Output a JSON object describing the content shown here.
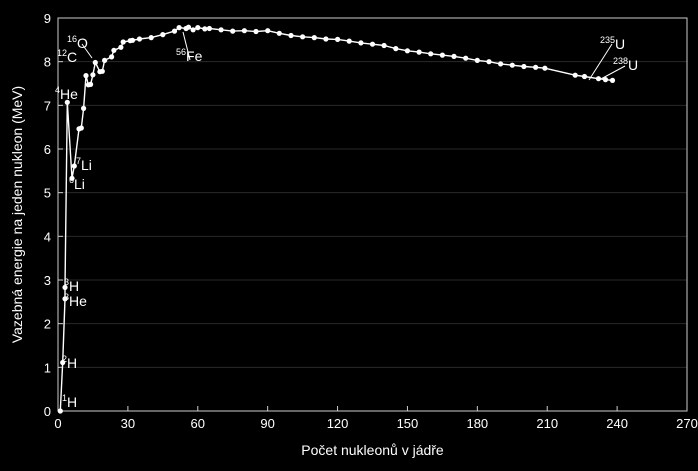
{
  "chart_data": {
    "type": "scatter",
    "xlabel": "Počet nukleonů v jádře",
    "ylabel": "Vazebná energie na jeden nukleon (MeV)",
    "xlim": [
      0,
      270
    ],
    "ylim": [
      0,
      9
    ],
    "x_ticks": [
      0,
      30,
      60,
      90,
      120,
      150,
      180,
      210,
      240,
      270
    ],
    "y_ticks": [
      0,
      1,
      2,
      3,
      4,
      5,
      6,
      7,
      8,
      9
    ],
    "grid": true,
    "colors": {
      "background": "#000000",
      "line": "#ffffff",
      "grid": "#2a2a2a"
    },
    "series": [
      {
        "x": [
          1,
          2,
          3,
          3,
          4,
          6,
          7,
          9,
          10,
          11,
          12,
          13,
          14,
          15,
          16,
          18,
          19,
          20,
          23,
          24,
          27,
          28,
          31,
          32,
          35,
          40,
          45,
          50,
          52,
          55,
          56,
          58,
          60,
          63,
          65,
          70,
          75,
          80,
          85,
          90,
          95,
          100,
          105,
          110,
          115,
          120,
          125,
          130,
          135,
          140,
          145,
          150,
          155,
          160,
          165,
          170,
          175,
          180,
          185,
          190,
          195,
          200,
          205,
          209,
          222,
          226,
          232,
          235,
          238
        ],
        "y": [
          0,
          1.11,
          2.57,
          2.83,
          7.07,
          5.33,
          5.61,
          6.46,
          6.48,
          6.93,
          7.68,
          7.47,
          7.48,
          7.7,
          7.98,
          7.77,
          7.78,
          8.03,
          8.11,
          8.26,
          8.33,
          8.45,
          8.48,
          8.49,
          8.52,
          8.55,
          8.62,
          8.7,
          8.78,
          8.76,
          8.79,
          8.73,
          8.78,
          8.75,
          8.76,
          8.73,
          8.7,
          8.71,
          8.69,
          8.71,
          8.65,
          8.6,
          8.57,
          8.55,
          8.52,
          8.51,
          8.47,
          8.43,
          8.4,
          8.37,
          8.3,
          8.25,
          8.22,
          8.18,
          8.15,
          8.12,
          8.08,
          8.03,
          8.0,
          7.95,
          7.92,
          7.89,
          7.87,
          7.85,
          7.69,
          7.66,
          7.61,
          7.59,
          7.57
        ]
      }
    ],
    "annotations": [
      {
        "mass": "1",
        "symbol": "H"
      },
      {
        "mass": "2",
        "symbol": "H"
      },
      {
        "mass": "3",
        "symbol": "He"
      },
      {
        "mass": "3",
        "symbol": "H"
      },
      {
        "mass": "4",
        "symbol": "He"
      },
      {
        "mass": "6",
        "symbol": "Li"
      },
      {
        "mass": "7",
        "symbol": "Li"
      },
      {
        "mass": "12",
        "symbol": "C"
      },
      {
        "mass": "16",
        "symbol": "O"
      },
      {
        "mass": "56",
        "symbol": "Fe"
      },
      {
        "mass": "235",
        "symbol": "U"
      },
      {
        "mass": "238",
        "symbol": "U"
      }
    ]
  }
}
